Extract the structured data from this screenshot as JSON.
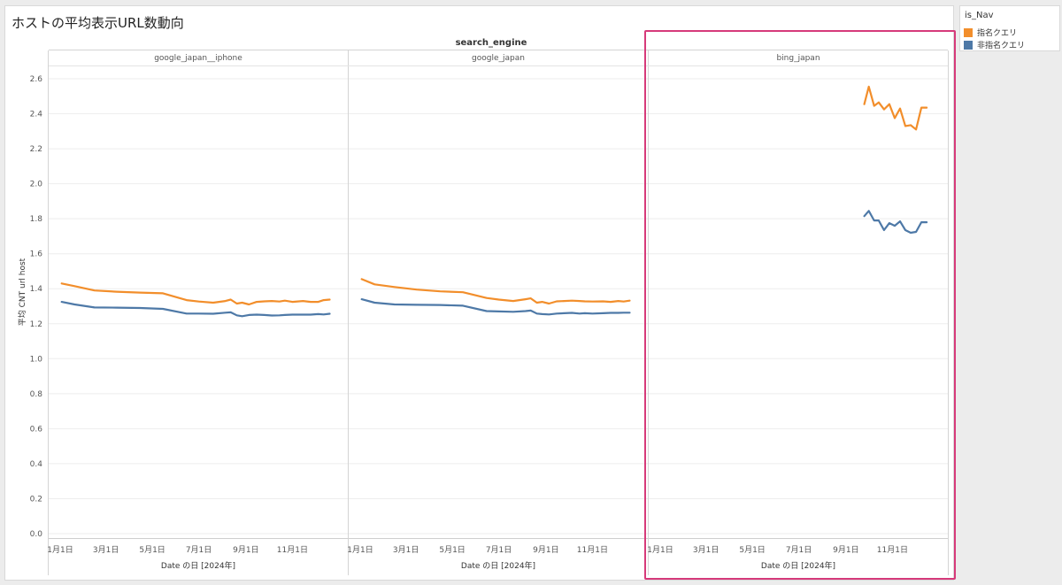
{
  "title": "ホストの平均表示URL数動向",
  "legend": {
    "title": "is_Nav",
    "items": [
      {
        "label": "指名クエリ",
        "color": "#f28e2b"
      },
      {
        "label": "非指名クエリ",
        "color": "#4e79a7"
      }
    ]
  },
  "highlight_color": "#d63a7a",
  "chart_data": {
    "type": "line",
    "column_header": "search_engine",
    "panes": [
      "google_japan__iphone",
      "google_japan",
      "bing_japan"
    ],
    "highlighted_pane": "bing_japan",
    "ylabel": "平均 CNT url host",
    "xlabel": "Date の日 [2024年]",
    "ylim": [
      0,
      2.65
    ],
    "yticks": [
      "0.0",
      "0.2",
      "0.4",
      "0.6",
      "0.8",
      "1.0",
      "1.2",
      "1.4",
      "1.6",
      "1.8",
      "2.0",
      "2.2",
      "2.4",
      "2.6"
    ],
    "xlim": [
      "2024-01-01",
      "2024-12-31"
    ],
    "xticks": [
      {
        "date": "2024-01-01",
        "label": "1月1日"
      },
      {
        "date": "2024-03-01",
        "label": "3月1日"
      },
      {
        "date": "2024-05-01",
        "label": "5月1日"
      },
      {
        "date": "2024-07-01",
        "label": "7月1日"
      },
      {
        "date": "2024-09-01",
        "label": "9月1日"
      },
      {
        "date": "2024-11-01",
        "label": "11月1日"
      }
    ],
    "grid": true,
    "series": [
      {
        "pane": "google_japan__iphone",
        "name": "指名クエリ",
        "color": "#f28e2b",
        "x": [
          "2024-01-03",
          "2024-01-20",
          "2024-02-15",
          "2024-03-15",
          "2024-04-15",
          "2024-05-15",
          "2024-06-15",
          "2024-07-01",
          "2024-07-20",
          "2024-08-05",
          "2024-08-12",
          "2024-08-20",
          "2024-08-27",
          "2024-09-05",
          "2024-09-15",
          "2024-09-25",
          "2024-10-05",
          "2024-10-15",
          "2024-10-22",
          "2024-11-01",
          "2024-11-15",
          "2024-11-25",
          "2024-12-05",
          "2024-12-12",
          "2024-12-20"
        ],
        "y": [
          1.43,
          1.415,
          1.39,
          1.383,
          1.378,
          1.374,
          1.335,
          1.327,
          1.32,
          1.33,
          1.338,
          1.315,
          1.32,
          1.31,
          1.325,
          1.328,
          1.33,
          1.327,
          1.332,
          1.325,
          1.33,
          1.325,
          1.325,
          1.335,
          1.338
        ]
      },
      {
        "pane": "google_japan__iphone",
        "name": "非指名クエリ",
        "color": "#4e79a7",
        "x": [
          "2024-01-03",
          "2024-01-20",
          "2024-02-15",
          "2024-03-15",
          "2024-04-15",
          "2024-05-15",
          "2024-06-15",
          "2024-07-01",
          "2024-07-20",
          "2024-08-05",
          "2024-08-12",
          "2024-08-20",
          "2024-08-27",
          "2024-09-05",
          "2024-09-15",
          "2024-09-25",
          "2024-10-05",
          "2024-10-15",
          "2024-10-22",
          "2024-11-01",
          "2024-11-15",
          "2024-11-25",
          "2024-12-05",
          "2024-12-12",
          "2024-12-20"
        ],
        "y": [
          1.325,
          1.31,
          1.293,
          1.292,
          1.29,
          1.285,
          1.258,
          1.258,
          1.257,
          1.263,
          1.265,
          1.248,
          1.243,
          1.25,
          1.252,
          1.25,
          1.247,
          1.248,
          1.25,
          1.252,
          1.252,
          1.252,
          1.255,
          1.253,
          1.257
        ]
      },
      {
        "pane": "google_japan",
        "name": "指名クエリ",
        "color": "#f28e2b",
        "x": [
          "2024-01-03",
          "2024-01-20",
          "2024-02-15",
          "2024-03-15",
          "2024-04-15",
          "2024-05-15",
          "2024-06-15",
          "2024-07-01",
          "2024-07-20",
          "2024-08-05",
          "2024-08-12",
          "2024-08-20",
          "2024-08-27",
          "2024-09-05",
          "2024-09-15",
          "2024-09-25",
          "2024-10-05",
          "2024-10-15",
          "2024-10-22",
          "2024-11-01",
          "2024-11-15",
          "2024-11-25",
          "2024-12-05",
          "2024-12-12",
          "2024-12-20"
        ],
        "y": [
          1.455,
          1.425,
          1.41,
          1.395,
          1.385,
          1.38,
          1.347,
          1.338,
          1.33,
          1.34,
          1.345,
          1.32,
          1.325,
          1.315,
          1.328,
          1.33,
          1.332,
          1.33,
          1.328,
          1.327,
          1.328,
          1.325,
          1.33,
          1.327,
          1.332
        ]
      },
      {
        "pane": "google_japan",
        "name": "非指名クエリ",
        "color": "#4e79a7",
        "x": [
          "2024-01-03",
          "2024-01-20",
          "2024-02-15",
          "2024-03-15",
          "2024-04-15",
          "2024-05-15",
          "2024-06-15",
          "2024-07-01",
          "2024-07-20",
          "2024-08-05",
          "2024-08-12",
          "2024-08-20",
          "2024-08-27",
          "2024-09-05",
          "2024-09-15",
          "2024-09-25",
          "2024-10-05",
          "2024-10-15",
          "2024-10-22",
          "2024-11-01",
          "2024-11-15",
          "2024-11-25",
          "2024-12-05",
          "2024-12-12",
          "2024-12-20"
        ],
        "y": [
          1.34,
          1.32,
          1.31,
          1.308,
          1.307,
          1.303,
          1.272,
          1.27,
          1.268,
          1.272,
          1.275,
          1.258,
          1.255,
          1.253,
          1.258,
          1.26,
          1.262,
          1.258,
          1.26,
          1.258,
          1.26,
          1.262,
          1.262,
          1.263,
          1.263
        ]
      },
      {
        "pane": "bing_japan",
        "name": "指名クエリ",
        "color": "#f28e2b",
        "x": [
          "2024-09-25",
          "2024-10-01",
          "2024-10-08",
          "2024-10-14",
          "2024-10-21",
          "2024-10-28",
          "2024-11-04",
          "2024-11-11",
          "2024-11-18",
          "2024-11-25",
          "2024-12-02",
          "2024-12-09",
          "2024-12-16"
        ],
        "y": [
          2.455,
          2.555,
          2.445,
          2.465,
          2.425,
          2.455,
          2.375,
          2.43,
          2.33,
          2.335,
          2.31,
          2.435,
          2.435
        ]
      },
      {
        "pane": "bing_japan",
        "name": "非指名クエリ",
        "color": "#4e79a7",
        "x": [
          "2024-09-25",
          "2024-10-01",
          "2024-10-08",
          "2024-10-14",
          "2024-10-21",
          "2024-10-28",
          "2024-11-04",
          "2024-11-11",
          "2024-11-18",
          "2024-11-25",
          "2024-12-02",
          "2024-12-09",
          "2024-12-16"
        ],
        "y": [
          1.815,
          1.845,
          1.79,
          1.79,
          1.735,
          1.775,
          1.76,
          1.785,
          1.735,
          1.72,
          1.725,
          1.78,
          1.78
        ]
      }
    ]
  }
}
